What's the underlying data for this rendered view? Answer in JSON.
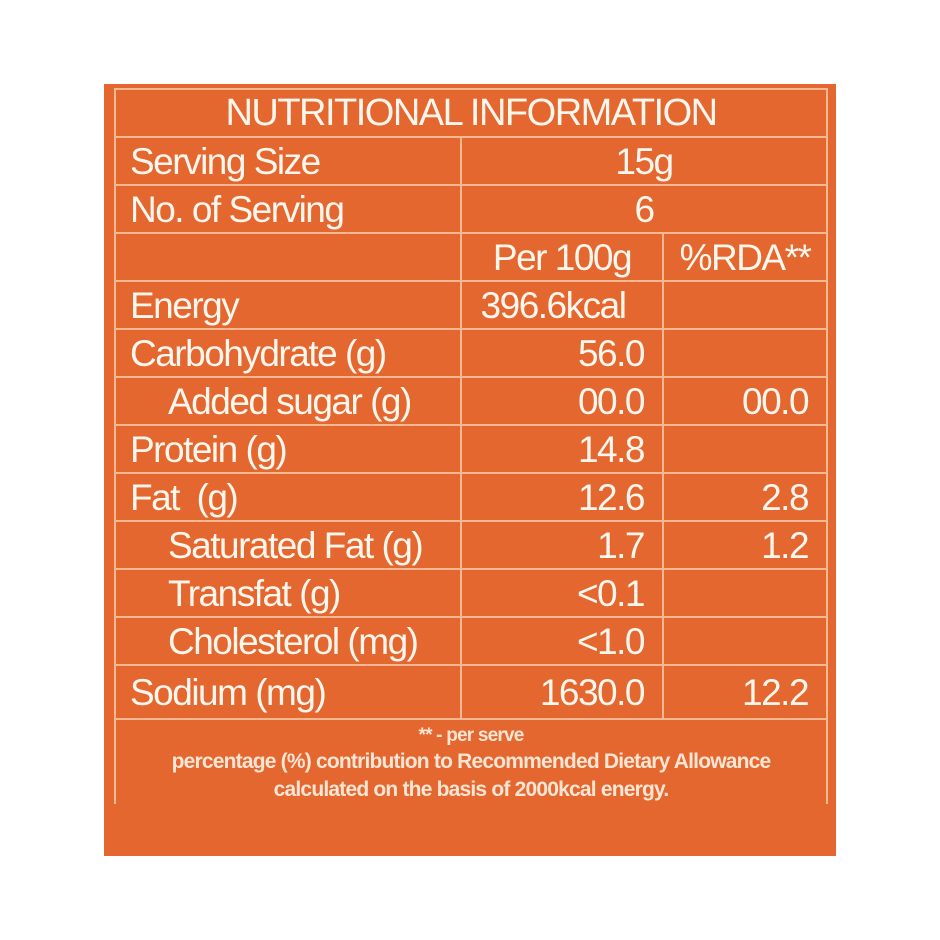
{
  "title": "NUTRITIONAL INFORMATION",
  "serving": {
    "size_label": "Serving Size",
    "size_value": "15g",
    "count_label": "No. of Serving",
    "count_value": "6"
  },
  "columns": {
    "per100": "Per 100g",
    "rda": "%RDA**"
  },
  "rows": [
    {
      "name": "Energy",
      "per100": "396.6kcal",
      "rda": ""
    },
    {
      "name": "Carbohydrate (g)",
      "per100": "56.0",
      "rda": ""
    },
    {
      "name": "Added sugar (g)",
      "per100": "00.0",
      "rda": "00.0"
    },
    {
      "name": "Protein (g)",
      "per100": "14.8",
      "rda": ""
    },
    {
      "name": "Fat  (g)",
      "per100": "12.6",
      "rda": "2.8"
    },
    {
      "name": "Saturated Fat (g)",
      "per100": "1.7",
      "rda": "1.2"
    },
    {
      "name": "Transfat (g)",
      "per100": "<0.1",
      "rda": ""
    },
    {
      "name": "Cholesterol (mg)",
      "per100": "<1.0",
      "rda": ""
    },
    {
      "name": "Sodium (mg)",
      "per100": "1630.0",
      "rda": "12.2"
    }
  ],
  "footnote": {
    "line1": "** - per serve",
    "line2": "percentage (%) contribution to Recommended Dietary Allowance",
    "line3": "calculated on the basis of 2000kcal energy."
  },
  "colors": {
    "panel": "#e4672f",
    "rule": "#f6b891",
    "text": "#fff7ee"
  }
}
